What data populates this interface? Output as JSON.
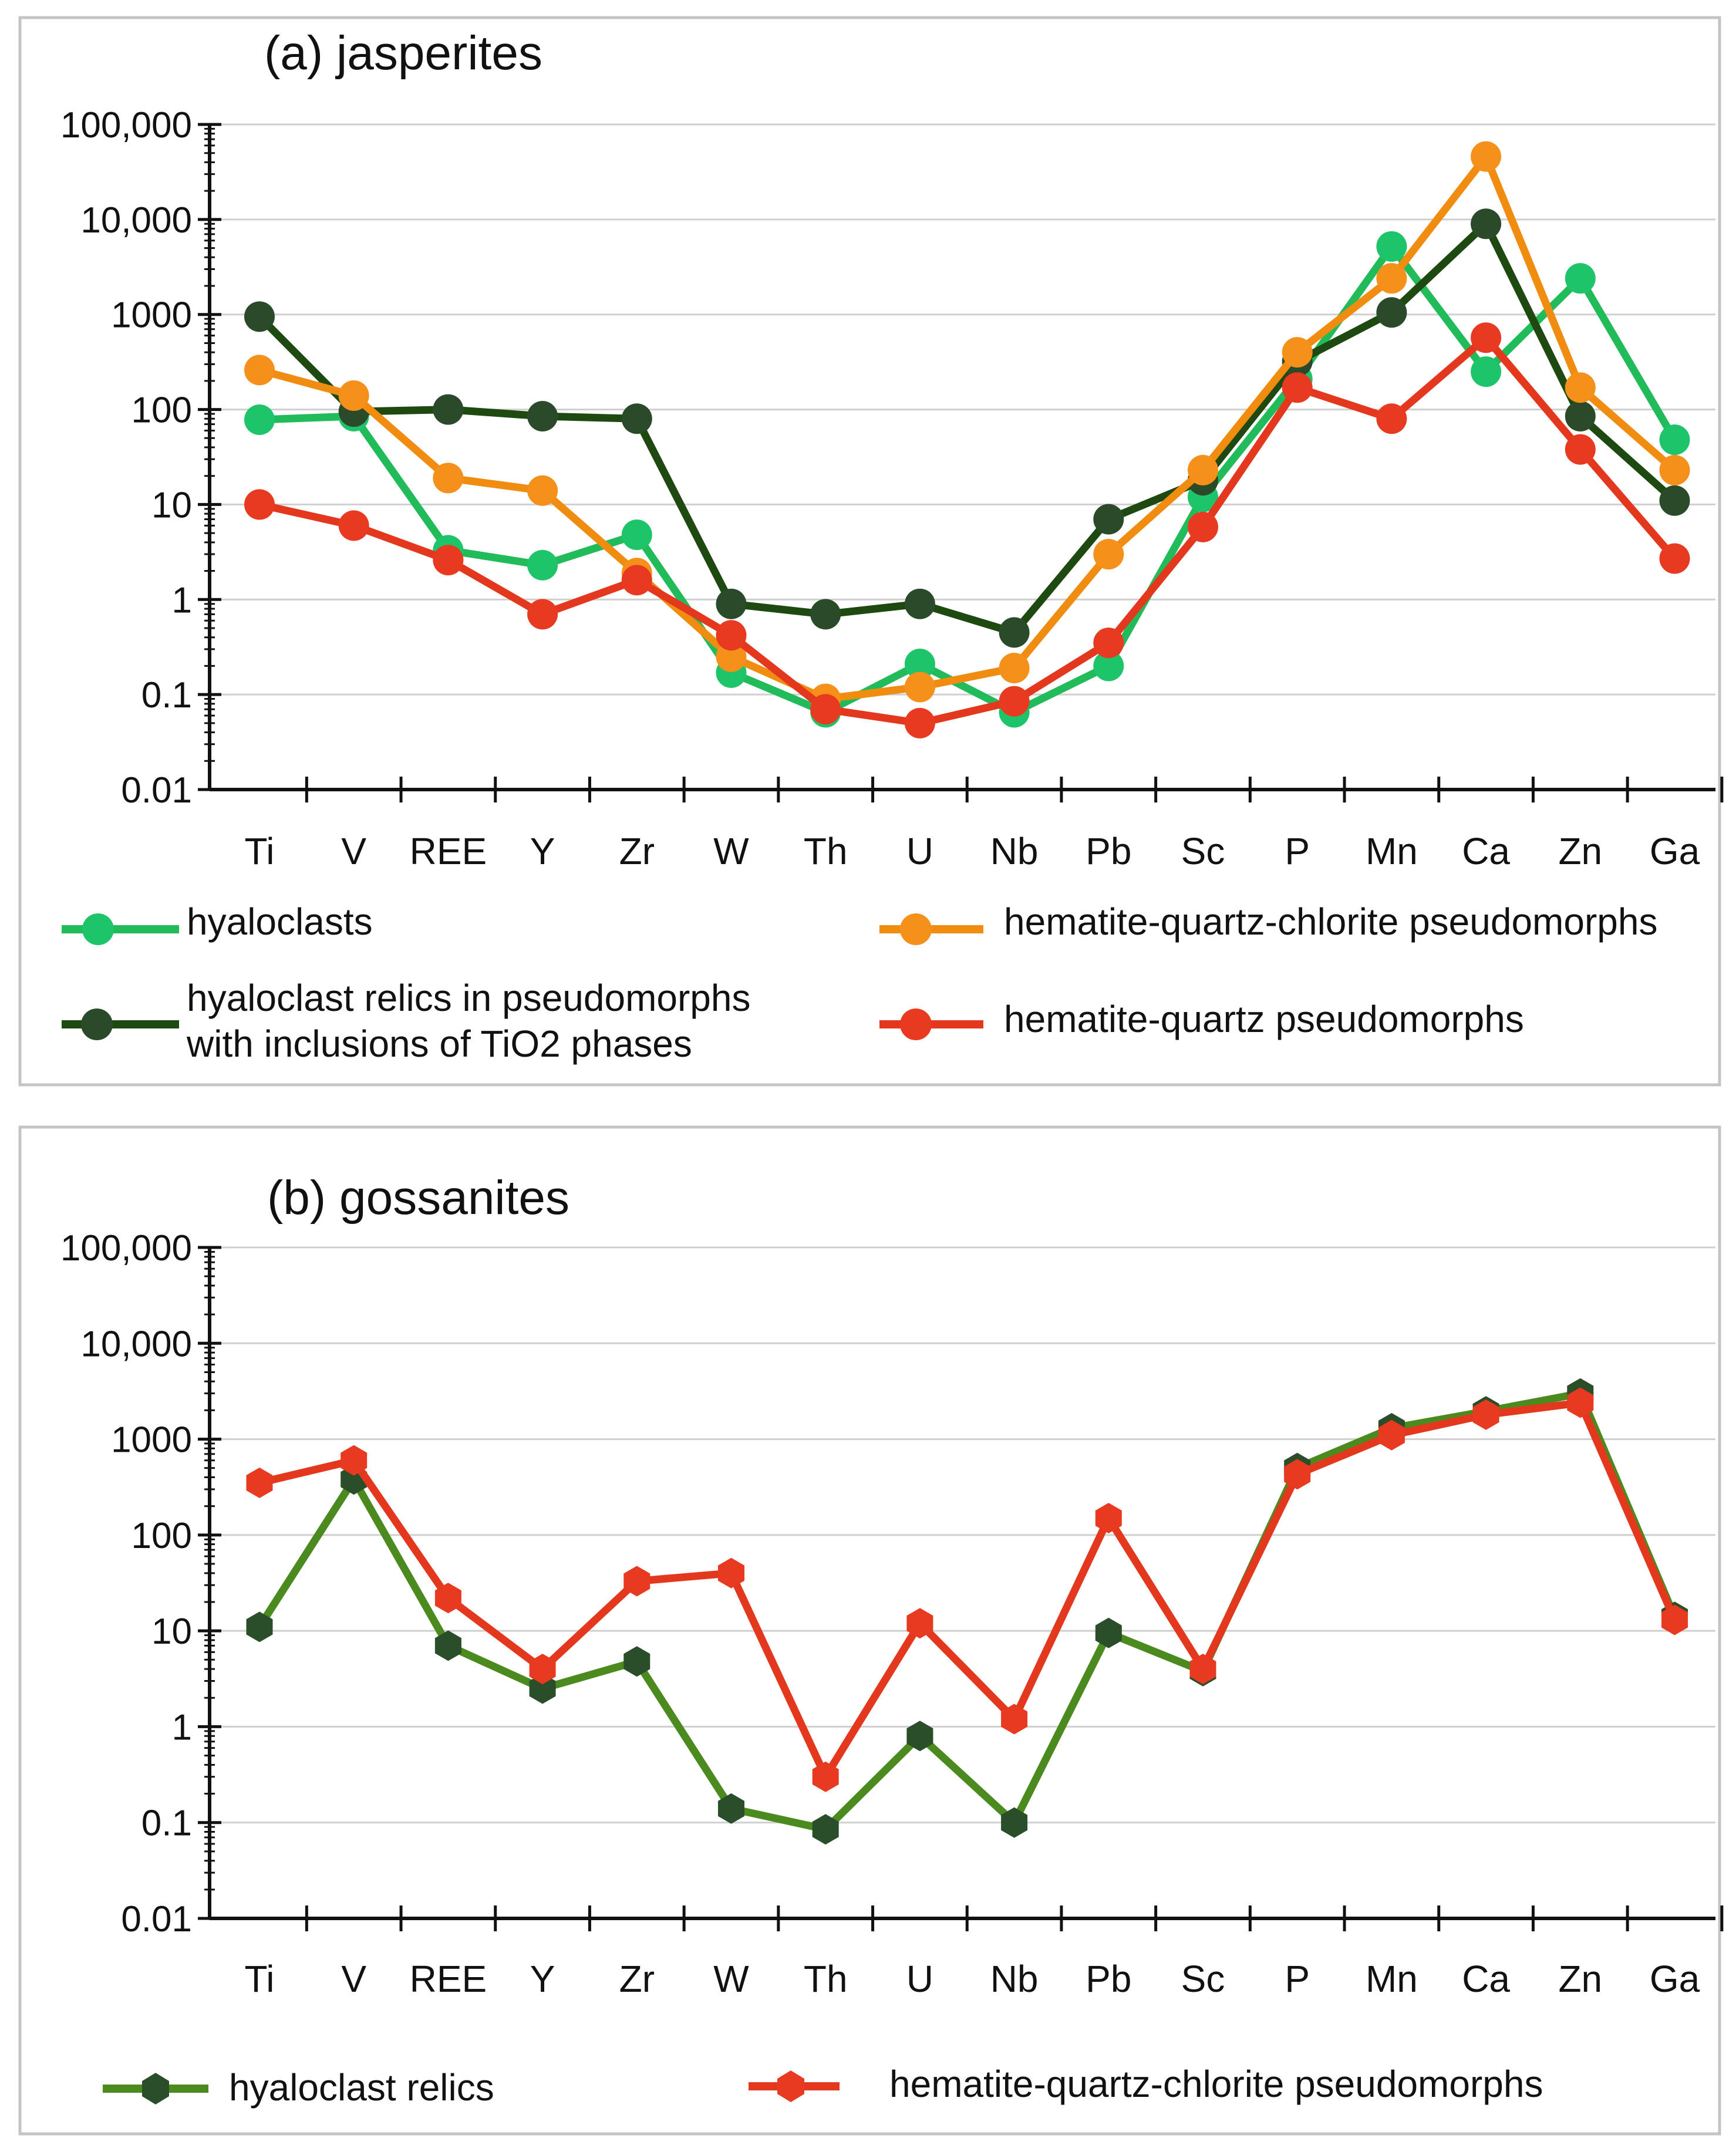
{
  "chart_data": [
    {
      "type": "line",
      "title": "(a) jasperites",
      "yscale": "log",
      "ylim": [
        0.01,
        100000
      ],
      "ytick_labels": [
        "0.01",
        "0.1",
        "1",
        "10",
        "100",
        "1000",
        "10,000",
        "100,000"
      ],
      "grid": "horizontal",
      "legend_position": "bottom",
      "categories": [
        "Ti",
        "V",
        "REE",
        "Y",
        "Zr",
        "W",
        "Th",
        "U",
        "Nb",
        "Pb",
        "Sc",
        "P",
        "Mn",
        "Ca",
        "Zn",
        "Ga"
      ],
      "series": [
        {
          "name": "hyaloclasts",
          "color": "#22bb5a",
          "marker_color": "#1ec46a",
          "values": [
            78,
            85,
            3.3,
            2.3,
            4.8,
            0.17,
            0.065,
            0.21,
            0.065,
            0.2,
            12,
            210,
            5200,
            250,
            2400,
            48
          ]
        },
        {
          "name": "hyaloclast relics in pseudomorphs with inclusions of TiO2 phases",
          "color": "#1e4a12",
          "marker_color": "#2a4a2a",
          "values": [
            950,
            95,
            100,
            85,
            80,
            0.9,
            0.7,
            0.9,
            0.45,
            7,
            18,
            320,
            1050,
            9000,
            85,
            11
          ]
        },
        {
          "name": "hematite-quartz-chlorite pseudomorphs",
          "color": "#f08c10",
          "marker_color": "#f5901a",
          "values": [
            260,
            140,
            19,
            14,
            1.9,
            0.25,
            0.09,
            0.12,
            0.19,
            3,
            23,
            400,
            2400,
            46000,
            170,
            23
          ]
        },
        {
          "name": "hematite-quartz pseudomorphs",
          "color": "#e4381e",
          "marker_color": "#e83a20",
          "values": [
            10,
            6,
            2.6,
            0.7,
            1.6,
            0.42,
            0.07,
            0.05,
            0.085,
            0.35,
            5.8,
            170,
            80,
            570,
            38,
            2.7
          ]
        }
      ],
      "legend": [
        {
          "label": "hyaloclasts",
          "series": 0
        },
        {
          "label": "hematite-quartz-chlorite pseudomorphs",
          "series": 2
        },
        {
          "label_lines": [
            "hyaloclast relics in pseudomorphs",
            "with inclusions of TiO2 phases"
          ],
          "series": 1
        },
        {
          "label": "hematite-quartz pseudomorphs",
          "series": 3
        }
      ]
    },
    {
      "type": "line",
      "title": "(b) gossanites",
      "yscale": "log",
      "ylim": [
        0.01,
        100000
      ],
      "ytick_labels": [
        "0.01",
        "0.1",
        "1",
        "10",
        "100",
        "1000",
        "10,000",
        "100,000"
      ],
      "grid": "horizontal",
      "legend_position": "bottom",
      "categories": [
        "Ti",
        "V",
        "REE",
        "Y",
        "Zr",
        "W",
        "Th",
        "U",
        "Nb",
        "Pb",
        "Sc",
        "P",
        "Mn",
        "Ca",
        "Zn",
        "Ga"
      ],
      "series": [
        {
          "name": "hyaloclast relics",
          "color": "#4b8a1e",
          "marker_color": "#2a4e2a",
          "values": [
            11,
            380,
            7,
            2.5,
            4.8,
            0.14,
            0.085,
            0.8,
            0.1,
            9.5,
            3.8,
            500,
            1300,
            1950,
            3000,
            14
          ]
        },
        {
          "name": "hematite-quartz-chlorite pseudomorphs",
          "color": "#e4381e",
          "marker_color": "#e83a20",
          "values": [
            350,
            600,
            22,
            4,
            33,
            40,
            0.3,
            12,
            1.2,
            150,
            4,
            430,
            1100,
            1800,
            2400,
            13
          ]
        }
      ],
      "legend": [
        {
          "label": "hyaloclast relics",
          "series": 0
        },
        {
          "label": "hematite-quartz-chlorite pseudomorphs",
          "series": 1
        }
      ]
    }
  ]
}
